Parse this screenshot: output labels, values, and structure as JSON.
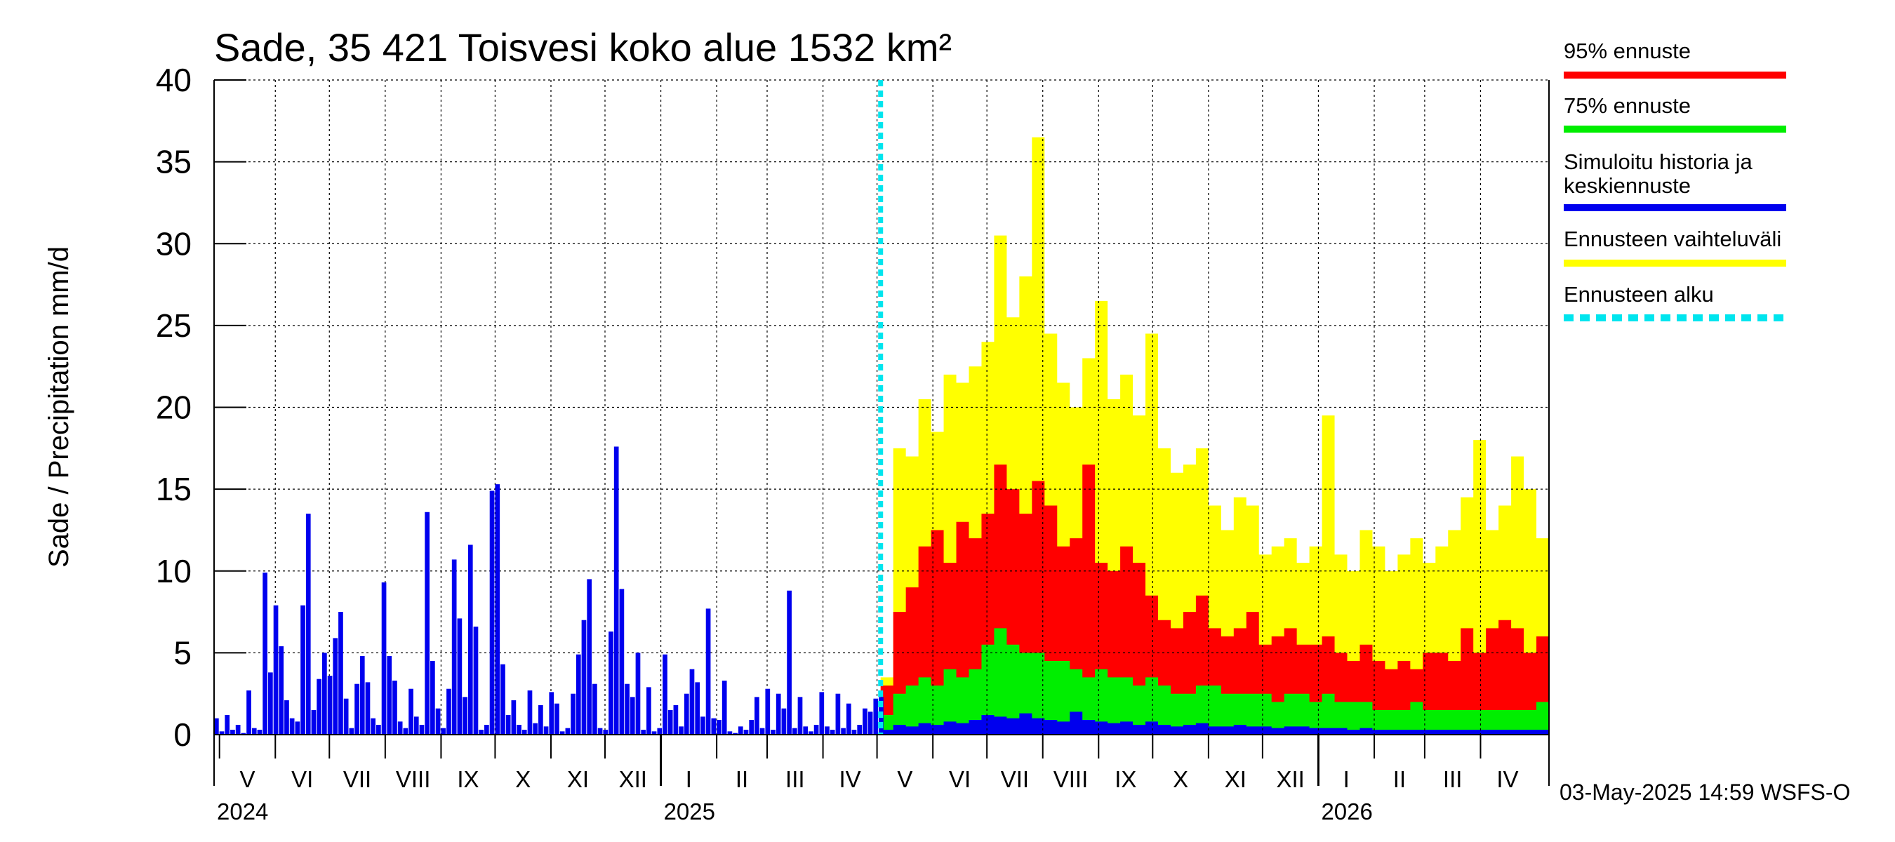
{
  "chart_data": {
    "type": "bar",
    "title": "Sade, 35 421 Toisvesi koko alue 1532 km²",
    "ylabel": "Sade / Precipitation   mm/d",
    "ylim": [
      0,
      40
    ],
    "y_ticks": [
      0,
      5,
      10,
      15,
      20,
      25,
      30,
      35,
      40
    ],
    "grid": true,
    "x_range": [
      "2024-04-28",
      "2026-05-09"
    ],
    "forecast_start": "2025-05-03",
    "months": [
      {
        "label": "V",
        "start": "2024-05-01",
        "end": "2024-06-01"
      },
      {
        "label": "VI",
        "start": "2024-06-01",
        "end": "2024-07-01"
      },
      {
        "label": "VII",
        "start": "2024-07-01",
        "end": "2024-08-01"
      },
      {
        "label": "VIII",
        "start": "2024-08-01",
        "end": "2024-09-01"
      },
      {
        "label": "IX",
        "start": "2024-09-01",
        "end": "2024-10-01"
      },
      {
        "label": "X",
        "start": "2024-10-01",
        "end": "2024-11-01"
      },
      {
        "label": "XI",
        "start": "2024-11-01",
        "end": "2024-12-01"
      },
      {
        "label": "XII",
        "start": "2024-12-01",
        "end": "2025-01-01"
      },
      {
        "label": "I",
        "start": "2025-01-01",
        "end": "2025-02-01"
      },
      {
        "label": "II",
        "start": "2025-02-01",
        "end": "2025-03-01"
      },
      {
        "label": "III",
        "start": "2025-03-01",
        "end": "2025-04-01"
      },
      {
        "label": "IV",
        "start": "2025-04-01",
        "end": "2025-05-01"
      },
      {
        "label": "V",
        "start": "2025-05-01",
        "end": "2025-06-01"
      },
      {
        "label": "VI",
        "start": "2025-06-01",
        "end": "2025-07-01"
      },
      {
        "label": "VII",
        "start": "2025-07-01",
        "end": "2025-08-01"
      },
      {
        "label": "VIII",
        "start": "2025-08-01",
        "end": "2025-09-01"
      },
      {
        "label": "IX",
        "start": "2025-09-01",
        "end": "2025-10-01"
      },
      {
        "label": "X",
        "start": "2025-10-01",
        "end": "2025-11-01"
      },
      {
        "label": "XI",
        "start": "2025-11-01",
        "end": "2025-12-01"
      },
      {
        "label": "XII",
        "start": "2025-12-01",
        "end": "2026-01-01"
      },
      {
        "label": "I",
        "start": "2026-01-01",
        "end": "2026-02-01"
      },
      {
        "label": "II",
        "start": "2026-02-01",
        "end": "2026-03-01"
      },
      {
        "label": "III",
        "start": "2026-03-01",
        "end": "2026-04-01"
      },
      {
        "label": "IV",
        "start": "2026-04-01",
        "end": "2026-05-01"
      }
    ],
    "years": [
      {
        "label": "2024",
        "date": "2024-05-01"
      },
      {
        "label": "2025",
        "date": "2025-01-01"
      },
      {
        "label": "2026",
        "date": "2026-01-01"
      }
    ],
    "legend": [
      {
        "label": "95% ennuste",
        "color": "#ff0000",
        "style": "solid"
      },
      {
        "label": "75% ennuste",
        "color": "#00ee00",
        "style": "solid"
      },
      {
        "label": "Simuloitu historia ja keskiennuste",
        "color": "#0000ee",
        "style": "solid"
      },
      {
        "label": "Ennusteen vaihteluväli",
        "color": "#ffff00",
        "style": "solid"
      },
      {
        "label": "Ennusteen alku",
        "color": "#00e5ee",
        "style": "dashed"
      }
    ],
    "series": [
      {
        "name": "Simuloitu historia ja keskiennuste",
        "color": "#0000ee",
        "x": [
          "2024-04-28",
          "2024-05-01",
          "2024-05-04",
          "2024-05-07",
          "2024-05-10",
          "2024-05-13",
          "2024-05-16",
          "2024-05-19",
          "2024-05-22",
          "2024-05-25",
          "2024-05-28",
          "2024-05-31",
          "2024-06-03",
          "2024-06-06",
          "2024-06-09",
          "2024-06-12",
          "2024-06-15",
          "2024-06-18",
          "2024-06-21",
          "2024-06-24",
          "2024-06-27",
          "2024-06-30",
          "2024-07-03",
          "2024-07-06",
          "2024-07-09",
          "2024-07-12",
          "2024-07-15",
          "2024-07-18",
          "2024-07-21",
          "2024-07-24",
          "2024-07-27",
          "2024-07-30",
          "2024-08-02",
          "2024-08-05",
          "2024-08-08",
          "2024-08-11",
          "2024-08-14",
          "2024-08-17",
          "2024-08-20",
          "2024-08-23",
          "2024-08-26",
          "2024-08-29",
          "2024-09-01",
          "2024-09-04",
          "2024-09-07",
          "2024-09-10",
          "2024-09-13",
          "2024-09-16",
          "2024-09-19",
          "2024-09-22",
          "2024-09-25",
          "2024-09-28",
          "2024-10-01",
          "2024-10-04",
          "2024-10-07",
          "2024-10-10",
          "2024-10-13",
          "2024-10-16",
          "2024-10-19",
          "2024-10-22",
          "2024-10-25",
          "2024-10-28",
          "2024-10-31",
          "2024-11-03",
          "2024-11-06",
          "2024-11-09",
          "2024-11-12",
          "2024-11-15",
          "2024-11-18",
          "2024-11-21",
          "2024-11-24",
          "2024-11-27",
          "2024-11-30",
          "2024-12-03",
          "2024-12-06",
          "2024-12-09",
          "2024-12-12",
          "2024-12-15",
          "2024-12-18",
          "2024-12-21",
          "2024-12-24",
          "2024-12-27",
          "2024-12-30",
          "2025-01-02",
          "2025-01-05",
          "2025-01-08",
          "2025-01-11",
          "2025-01-14",
          "2025-01-17",
          "2025-01-20",
          "2025-01-23",
          "2025-01-26",
          "2025-01-29",
          "2025-02-01",
          "2025-02-04",
          "2025-02-07",
          "2025-02-10",
          "2025-02-13",
          "2025-02-16",
          "2025-02-19",
          "2025-02-22",
          "2025-02-25",
          "2025-02-28",
          "2025-03-03",
          "2025-03-06",
          "2025-03-09",
          "2025-03-12",
          "2025-03-15",
          "2025-03-18",
          "2025-03-21",
          "2025-03-24",
          "2025-03-27",
          "2025-03-30",
          "2025-04-02",
          "2025-04-05",
          "2025-04-08",
          "2025-04-11",
          "2025-04-14",
          "2025-04-17",
          "2025-04-20",
          "2025-04-23",
          "2025-04-26",
          "2025-04-29",
          "2025-05-02"
        ],
        "values": [
          1.0,
          0.2,
          1.2,
          0.3,
          0.6,
          0.1,
          2.7,
          0.4,
          0.3,
          9.9,
          3.8,
          7.9,
          5.4,
          2.1,
          1.0,
          0.8,
          7.9,
          13.5,
          1.5,
          3.4,
          5.0,
          3.6,
          5.9,
          7.5,
          2.2,
          0.4,
          3.1,
          4.8,
          3.2,
          1.0,
          0.6,
          9.3,
          4.8,
          3.3,
          0.8,
          0.4,
          2.8,
          1.1,
          0.6,
          13.6,
          4.5,
          1.6,
          0.4,
          2.8,
          10.7,
          7.1,
          2.3,
          11.6,
          6.6,
          0.3,
          0.6,
          14.9,
          15.3,
          4.3,
          1.2,
          2.1,
          0.6,
          0.3,
          2.7,
          0.7,
          1.8,
          0.5,
          2.6,
          1.9,
          0.2,
          0.4,
          2.5,
          4.9,
          7.0,
          9.5,
          3.1,
          0.4,
          0.3,
          6.3,
          17.6,
          8.9,
          3.1,
          2.3,
          5.0,
          0.3,
          2.9,
          0.2,
          0.4,
          4.9,
          1.5,
          1.8,
          0.5,
          2.5,
          4.0,
          3.2,
          1.1,
          7.7,
          1.0,
          0.9,
          3.3,
          0.2,
          0.1,
          0.5,
          0.3,
          0.9,
          2.3,
          0.4,
          2.8,
          0.3,
          2.5,
          1.6,
          8.8,
          0.4,
          2.3,
          0.5,
          0.2,
          0.6,
          2.6,
          0.5,
          0.3,
          2.5,
          0.4,
          1.9,
          0.3,
          0.6,
          1.6,
          1.4,
          2.2,
          2.3
        ]
      },
      {
        "name": "Ennusteen vaihteluväli",
        "color": "#ffff00",
        "x": [
          "2025-05-03",
          "2025-05-10",
          "2025-05-17",
          "2025-05-24",
          "2025-05-31",
          "2025-06-07",
          "2025-06-14",
          "2025-06-21",
          "2025-06-28",
          "2025-07-05",
          "2025-07-12",
          "2025-07-19",
          "2025-07-26",
          "2025-08-02",
          "2025-08-09",
          "2025-08-16",
          "2025-08-23",
          "2025-08-30",
          "2025-09-06",
          "2025-09-13",
          "2025-09-20",
          "2025-09-27",
          "2025-10-04",
          "2025-10-11",
          "2025-10-18",
          "2025-10-25",
          "2025-11-01",
          "2025-11-08",
          "2025-11-15",
          "2025-11-22",
          "2025-11-29",
          "2025-12-06",
          "2025-12-13",
          "2025-12-20",
          "2025-12-27",
          "2026-01-03",
          "2026-01-10",
          "2026-01-17",
          "2026-01-24",
          "2026-01-31",
          "2026-02-07",
          "2026-02-14",
          "2026-02-21",
          "2026-02-28",
          "2026-03-07",
          "2026-03-14",
          "2026-03-21",
          "2026-03-28",
          "2026-04-04",
          "2026-04-11",
          "2026-04-18",
          "2026-04-25",
          "2026-05-02",
          "2026-05-09"
        ],
        "values": [
          3.5,
          17.5,
          17.0,
          20.5,
          18.5,
          22.0,
          21.5,
          22.5,
          24.0,
          30.5,
          25.5,
          28.0,
          36.5,
          24.5,
          21.5,
          20.0,
          23.0,
          26.5,
          20.5,
          22.0,
          19.5,
          24.5,
          17.5,
          16.0,
          16.5,
          17.5,
          14.0,
          12.5,
          14.5,
          14.0,
          11.0,
          11.5,
          12.0,
          10.5,
          11.5,
          19.5,
          11.0,
          10.0,
          12.5,
          11.5,
          10.0,
          11.0,
          12.0,
          10.5,
          11.5,
          12.5,
          14.5,
          18.0,
          12.5,
          14.0,
          17.0,
          15.0,
          12.0,
          10.0
        ]
      },
      {
        "name": "95% ennuste",
        "color": "#ff0000",
        "x": [
          "2025-05-03",
          "2025-05-10",
          "2025-05-17",
          "2025-05-24",
          "2025-05-31",
          "2025-06-07",
          "2025-06-14",
          "2025-06-21",
          "2025-06-28",
          "2025-07-05",
          "2025-07-12",
          "2025-07-19",
          "2025-07-26",
          "2025-08-02",
          "2025-08-09",
          "2025-08-16",
          "2025-08-23",
          "2025-08-30",
          "2025-09-06",
          "2025-09-13",
          "2025-09-20",
          "2025-09-27",
          "2025-10-04",
          "2025-10-11",
          "2025-10-18",
          "2025-10-25",
          "2025-11-01",
          "2025-11-08",
          "2025-11-15",
          "2025-11-22",
          "2025-11-29",
          "2025-12-06",
          "2025-12-13",
          "2025-12-20",
          "2025-12-27",
          "2026-01-03",
          "2026-01-10",
          "2026-01-17",
          "2026-01-24",
          "2026-01-31",
          "2026-02-07",
          "2026-02-14",
          "2026-02-21",
          "2026-02-28",
          "2026-03-07",
          "2026-03-14",
          "2026-03-21",
          "2026-03-28",
          "2026-04-04",
          "2026-04-11",
          "2026-04-18",
          "2026-04-25",
          "2026-05-02",
          "2026-05-09"
        ],
        "values": [
          3.0,
          7.5,
          9.0,
          11.5,
          12.5,
          10.5,
          13.0,
          12.0,
          13.5,
          16.5,
          15.0,
          13.5,
          15.5,
          14.0,
          11.5,
          12.0,
          16.5,
          10.5,
          10.0,
          11.5,
          10.5,
          8.5,
          7.0,
          6.5,
          7.5,
          8.5,
          6.5,
          6.0,
          6.5,
          7.5,
          5.5,
          6.0,
          6.5,
          5.5,
          5.5,
          6.0,
          5.0,
          4.5,
          5.5,
          4.5,
          4.0,
          4.5,
          4.0,
          5.0,
          5.0,
          4.5,
          6.5,
          5.0,
          6.5,
          7.0,
          6.5,
          5.0,
          6.0,
          6.0
        ]
      },
      {
        "name": "75% ennuste",
        "color": "#00ee00",
        "x": [
          "2025-05-03",
          "2025-05-10",
          "2025-05-17",
          "2025-05-24",
          "2025-05-31",
          "2025-06-07",
          "2025-06-14",
          "2025-06-21",
          "2025-06-28",
          "2025-07-05",
          "2025-07-12",
          "2025-07-19",
          "2025-07-26",
          "2025-08-02",
          "2025-08-09",
          "2025-08-16",
          "2025-08-23",
          "2025-08-30",
          "2025-09-06",
          "2025-09-13",
          "2025-09-20",
          "2025-09-27",
          "2025-10-04",
          "2025-10-11",
          "2025-10-18",
          "2025-10-25",
          "2025-11-01",
          "2025-11-08",
          "2025-11-15",
          "2025-11-22",
          "2025-11-29",
          "2025-12-06",
          "2025-12-13",
          "2025-12-20",
          "2025-12-27",
          "2026-01-03",
          "2026-01-10",
          "2026-01-17",
          "2026-01-24",
          "2026-01-31",
          "2026-02-07",
          "2026-02-14",
          "2026-02-21",
          "2026-02-28",
          "2026-03-07",
          "2026-03-14",
          "2026-03-21",
          "2026-03-28",
          "2026-04-04",
          "2026-04-11",
          "2026-04-18",
          "2026-04-25",
          "2026-05-02",
          "2026-05-09"
        ],
        "values": [
          1.2,
          2.5,
          3.0,
          3.5,
          3.0,
          4.0,
          3.5,
          4.0,
          5.5,
          6.5,
          5.5,
          5.0,
          5.0,
          4.5,
          4.5,
          4.0,
          3.5,
          4.0,
          3.5,
          3.5,
          3.0,
          3.5,
          3.0,
          2.5,
          2.5,
          3.0,
          3.0,
          2.5,
          2.5,
          2.5,
          2.5,
          2.0,
          2.5,
          2.5,
          2.0,
          2.5,
          2.0,
          2.0,
          2.0,
          1.5,
          1.5,
          1.5,
          2.0,
          1.5,
          1.5,
          1.5,
          1.5,
          1.5,
          1.5,
          1.5,
          1.5,
          1.5,
          2.0,
          2.0
        ]
      },
      {
        "name": "Simuloitu historia ja keskiennuste (forecast)",
        "color": "#0000ee",
        "x": [
          "2025-05-03",
          "2025-05-10",
          "2025-05-17",
          "2025-05-24",
          "2025-05-31",
          "2025-06-07",
          "2025-06-14",
          "2025-06-21",
          "2025-06-28",
          "2025-07-05",
          "2025-07-12",
          "2025-07-19",
          "2025-07-26",
          "2025-08-02",
          "2025-08-09",
          "2025-08-16",
          "2025-08-23",
          "2025-08-30",
          "2025-09-06",
          "2025-09-13",
          "2025-09-20",
          "2025-09-27",
          "2025-10-04",
          "2025-10-11",
          "2025-10-18",
          "2025-10-25",
          "2025-11-01",
          "2025-11-08",
          "2025-11-15",
          "2025-11-22",
          "2025-11-29",
          "2025-12-06",
          "2025-12-13",
          "2025-12-20",
          "2025-12-27",
          "2026-01-03",
          "2026-01-10",
          "2026-01-17",
          "2026-01-24",
          "2026-01-31",
          "2026-02-07",
          "2026-02-14",
          "2026-02-21",
          "2026-02-28",
          "2026-03-07",
          "2026-03-14",
          "2026-03-21",
          "2026-03-28",
          "2026-04-04",
          "2026-04-11",
          "2026-04-18",
          "2026-04-25",
          "2026-05-02",
          "2026-05-09"
        ],
        "values": [
          0.3,
          0.6,
          0.5,
          0.7,
          0.6,
          0.8,
          0.7,
          0.9,
          1.2,
          1.1,
          1.0,
          1.3,
          1.0,
          0.9,
          0.8,
          1.4,
          0.9,
          0.8,
          0.7,
          0.8,
          0.6,
          0.8,
          0.6,
          0.5,
          0.6,
          0.7,
          0.5,
          0.5,
          0.6,
          0.5,
          0.5,
          0.4,
          0.5,
          0.5,
          0.4,
          0.4,
          0.4,
          0.3,
          0.4,
          0.3,
          0.3,
          0.3,
          0.3,
          0.3,
          0.3,
          0.3,
          0.3,
          0.3,
          0.3,
          0.3,
          0.3,
          0.3,
          0.3,
          0.3
        ]
      }
    ],
    "footer": "03-May-2025 14:59 WSFS-O"
  }
}
